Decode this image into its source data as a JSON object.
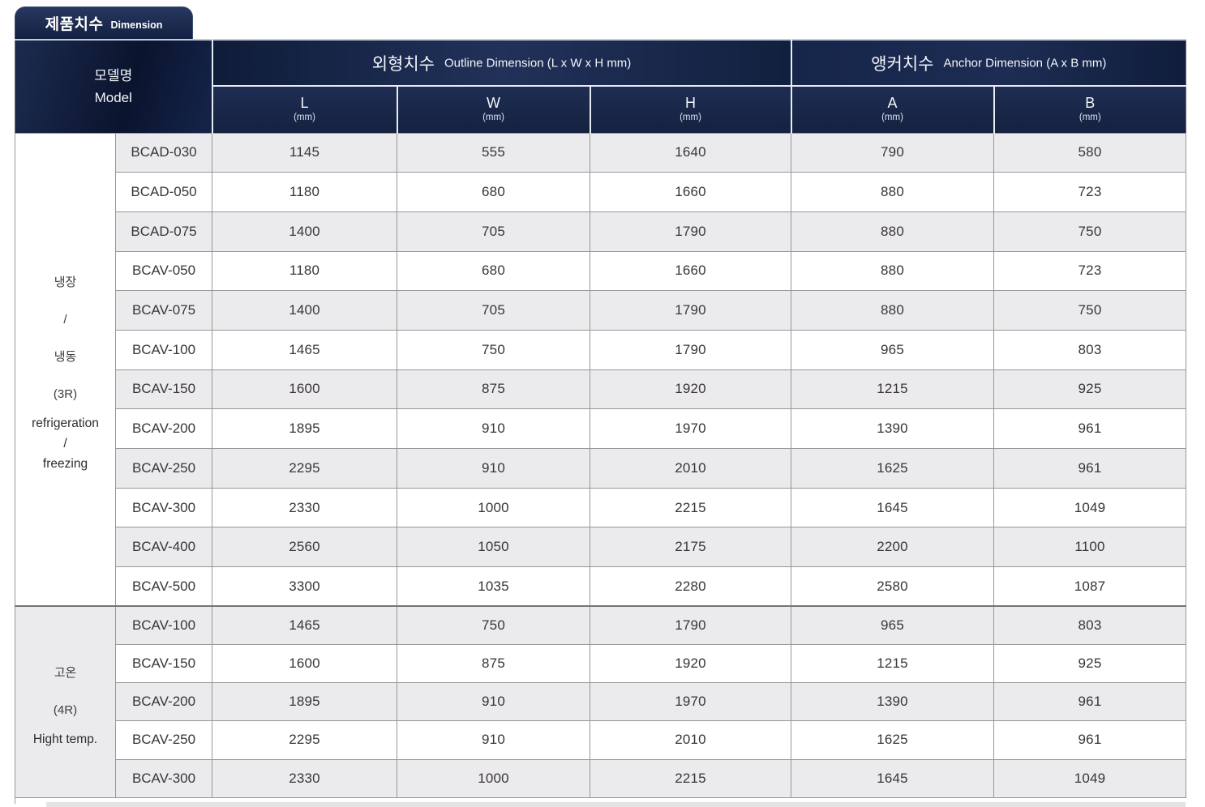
{
  "tab": {
    "title_korean": "제품치수",
    "title_english": "Dimension"
  },
  "colors": {
    "header_navy": "#1b2a4c",
    "header_navy_dark": "#0a142e",
    "stripe_gray": "#ebebed",
    "body_text": "#3b3436",
    "grid_line": "#979797"
  },
  "table": {
    "header": {
      "model_korean": "모델명",
      "model_english": "Model",
      "outline_korean": "외형치수",
      "outline_english": "Outline Dimension (L x W x H mm)",
      "anchor_korean": "앵커치수",
      "anchor_english": "Anchor Dimension (A x B mm)",
      "columns": [
        {
          "label": "L",
          "unit": "(mm)"
        },
        {
          "label": "W",
          "unit": "(mm)"
        },
        {
          "label": "H",
          "unit": "(mm)"
        },
        {
          "label": "A",
          "unit": "(mm)"
        },
        {
          "label": "B",
          "unit": "(mm)"
        }
      ]
    },
    "groups": [
      {
        "label_korean_lines": [
          "냉장",
          "/",
          "냉동",
          "(3R)"
        ],
        "label_english_lines": [
          "refrigeration",
          "/",
          "freezing"
        ],
        "rows": [
          {
            "model": "BCAD-030",
            "values": [
              1145,
              555,
              1640,
              790,
              580
            ]
          },
          {
            "model": "BCAD-050",
            "values": [
              1180,
              680,
              1660,
              880,
              723
            ]
          },
          {
            "model": "BCAD-075",
            "values": [
              1400,
              705,
              1790,
              880,
              750
            ]
          },
          {
            "model": "BCAV-050",
            "values": [
              1180,
              680,
              1660,
              880,
              723
            ]
          },
          {
            "model": "BCAV-075",
            "values": [
              1400,
              705,
              1790,
              880,
              750
            ]
          },
          {
            "model": "BCAV-100",
            "values": [
              1465,
              750,
              1790,
              965,
              803
            ]
          },
          {
            "model": "BCAV-150",
            "values": [
              1600,
              875,
              1920,
              1215,
              925
            ]
          },
          {
            "model": "BCAV-200",
            "values": [
              1895,
              910,
              1970,
              1390,
              961
            ]
          },
          {
            "model": "BCAV-250",
            "values": [
              2295,
              910,
              2010,
              1625,
              961
            ]
          },
          {
            "model": "BCAV-300",
            "values": [
              2330,
              1000,
              2215,
              1645,
              1049
            ]
          },
          {
            "model": "BCAV-400",
            "values": [
              2560,
              1050,
              2175,
              2200,
              1100
            ]
          },
          {
            "model": "BCAV-500",
            "values": [
              3300,
              1035,
              2280,
              2580,
              1087
            ]
          }
        ]
      },
      {
        "label_korean_lines": [
          "고온",
          "(4R)"
        ],
        "label_english_lines": [
          "Hight temp."
        ],
        "rows": [
          {
            "model": "BCAV-100",
            "values": [
              1465,
              750,
              1790,
              965,
              803
            ]
          },
          {
            "model": "BCAV-150",
            "values": [
              1600,
              875,
              1920,
              1215,
              925
            ]
          },
          {
            "model": "BCAV-200",
            "values": [
              1895,
              910,
              1970,
              1390,
              961
            ]
          },
          {
            "model": "BCAV-250",
            "values": [
              2295,
              910,
              2010,
              1625,
              961
            ]
          },
          {
            "model": "BCAV-300",
            "values": [
              2330,
              1000,
              2215,
              1645,
              1049
            ]
          }
        ]
      }
    ]
  }
}
